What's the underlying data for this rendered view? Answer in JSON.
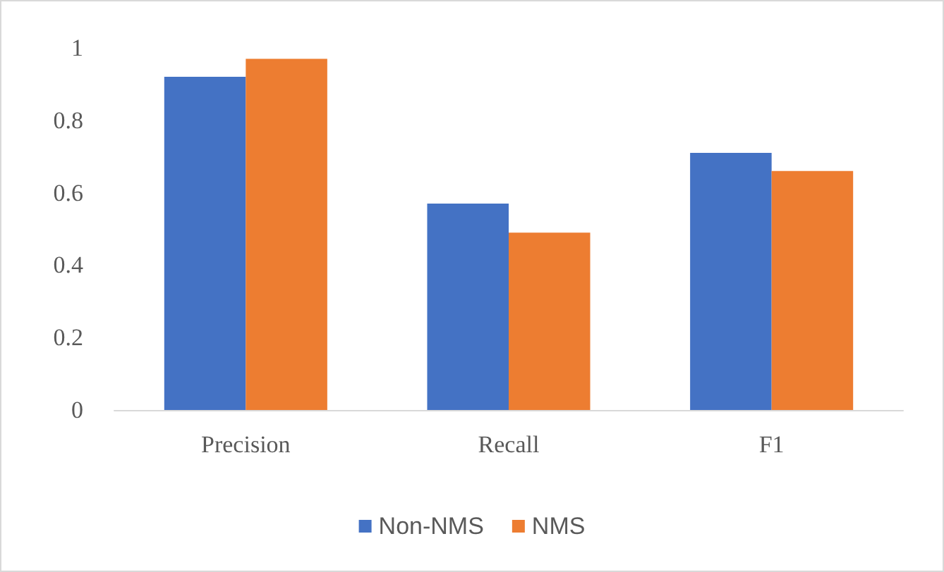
{
  "chart_data": {
    "type": "bar",
    "categories": [
      "Precision",
      "Recall",
      "F1"
    ],
    "series": [
      {
        "name": "Non-NMS",
        "color": "#4472c4",
        "values": [
          0.92,
          0.57,
          0.71
        ]
      },
      {
        "name": "NMS",
        "color": "#ed7d31",
        "values": [
          0.97,
          0.49,
          0.66
        ]
      }
    ],
    "ylim": [
      0,
      1
    ],
    "yticks": [
      0,
      0.2,
      0.4,
      0.6,
      0.8,
      1
    ],
    "grid": false,
    "legend": "bottom"
  }
}
